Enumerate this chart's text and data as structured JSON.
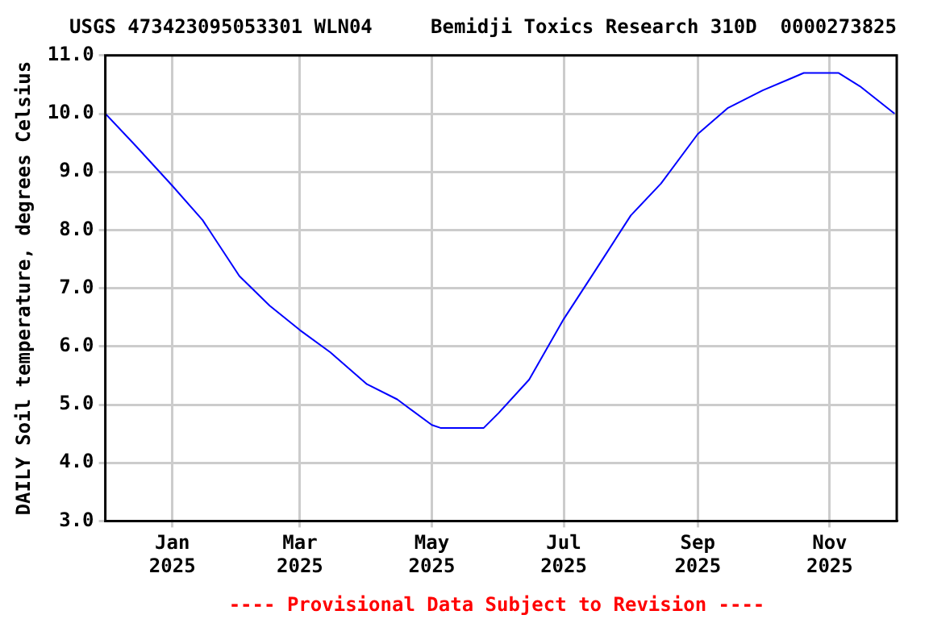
{
  "chart_data": {
    "type": "line",
    "title": "USGS 473423095053301 WLN04     Bemidji Toxics Research 310D  0000273825",
    "ylabel": "DAILY Soil temperature, degrees Celsius",
    "x": [
      "2024-12-01",
      "2024-12-15",
      "2025-01-01",
      "2025-01-15",
      "2025-02-01",
      "2025-02-15",
      "2025-03-01",
      "2025-03-15",
      "2025-04-01",
      "2025-04-15",
      "2025-05-01",
      "2025-05-05",
      "2025-05-25",
      "2025-06-01",
      "2025-06-15",
      "2025-07-01",
      "2025-07-15",
      "2025-08-01",
      "2025-08-15",
      "2025-09-01",
      "2025-09-15",
      "2025-10-01",
      "2025-10-15",
      "2025-10-20",
      "2025-11-05",
      "2025-11-15",
      "2025-12-01"
    ],
    "series": [
      {
        "color": "#0000ff",
        "values": [
          10.0,
          9.45,
          8.76,
          8.17,
          7.21,
          6.7,
          6.28,
          5.9,
          5.35,
          5.09,
          4.65,
          4.6,
          4.6,
          4.86,
          5.43,
          6.47,
          7.27,
          8.25,
          8.8,
          9.65,
          10.1,
          10.4,
          10.62,
          10.7,
          10.7,
          10.47,
          10.0
        ]
      }
    ],
    "xlim": [
      "2024-12-01",
      "2025-12-02"
    ],
    "xticks": [
      {
        "value": "2025-01-01",
        "label": "Jan 2025"
      },
      {
        "value": "2025-03-01",
        "label": "Mar 2025"
      },
      {
        "value": "2025-05-01",
        "label": "May 2025"
      },
      {
        "value": "2025-07-01",
        "label": "Jul 2025"
      },
      {
        "value": "2025-09-01",
        "label": "Sep 2025"
      },
      {
        "value": "2025-11-01",
        "label": "Nov 2025"
      }
    ],
    "ylim": [
      3,
      11
    ],
    "yticks": [
      {
        "value": 3,
        "label": "3.0"
      },
      {
        "value": 4,
        "label": "4.0"
      },
      {
        "value": 5,
        "label": "5.0"
      },
      {
        "value": 6,
        "label": "6.0"
      },
      {
        "value": 7,
        "label": "7.0"
      },
      {
        "value": 8,
        "label": "8.0"
      },
      {
        "value": 9,
        "label": "9.0"
      },
      {
        "value": 10,
        "label": "10.0"
      },
      {
        "value": 11,
        "label": "11.0"
      }
    ],
    "grid": true,
    "marker": "none",
    "line_style": "solid",
    "annotations": [
      "---- Provisional Data Subject to Revision ----"
    ]
  }
}
